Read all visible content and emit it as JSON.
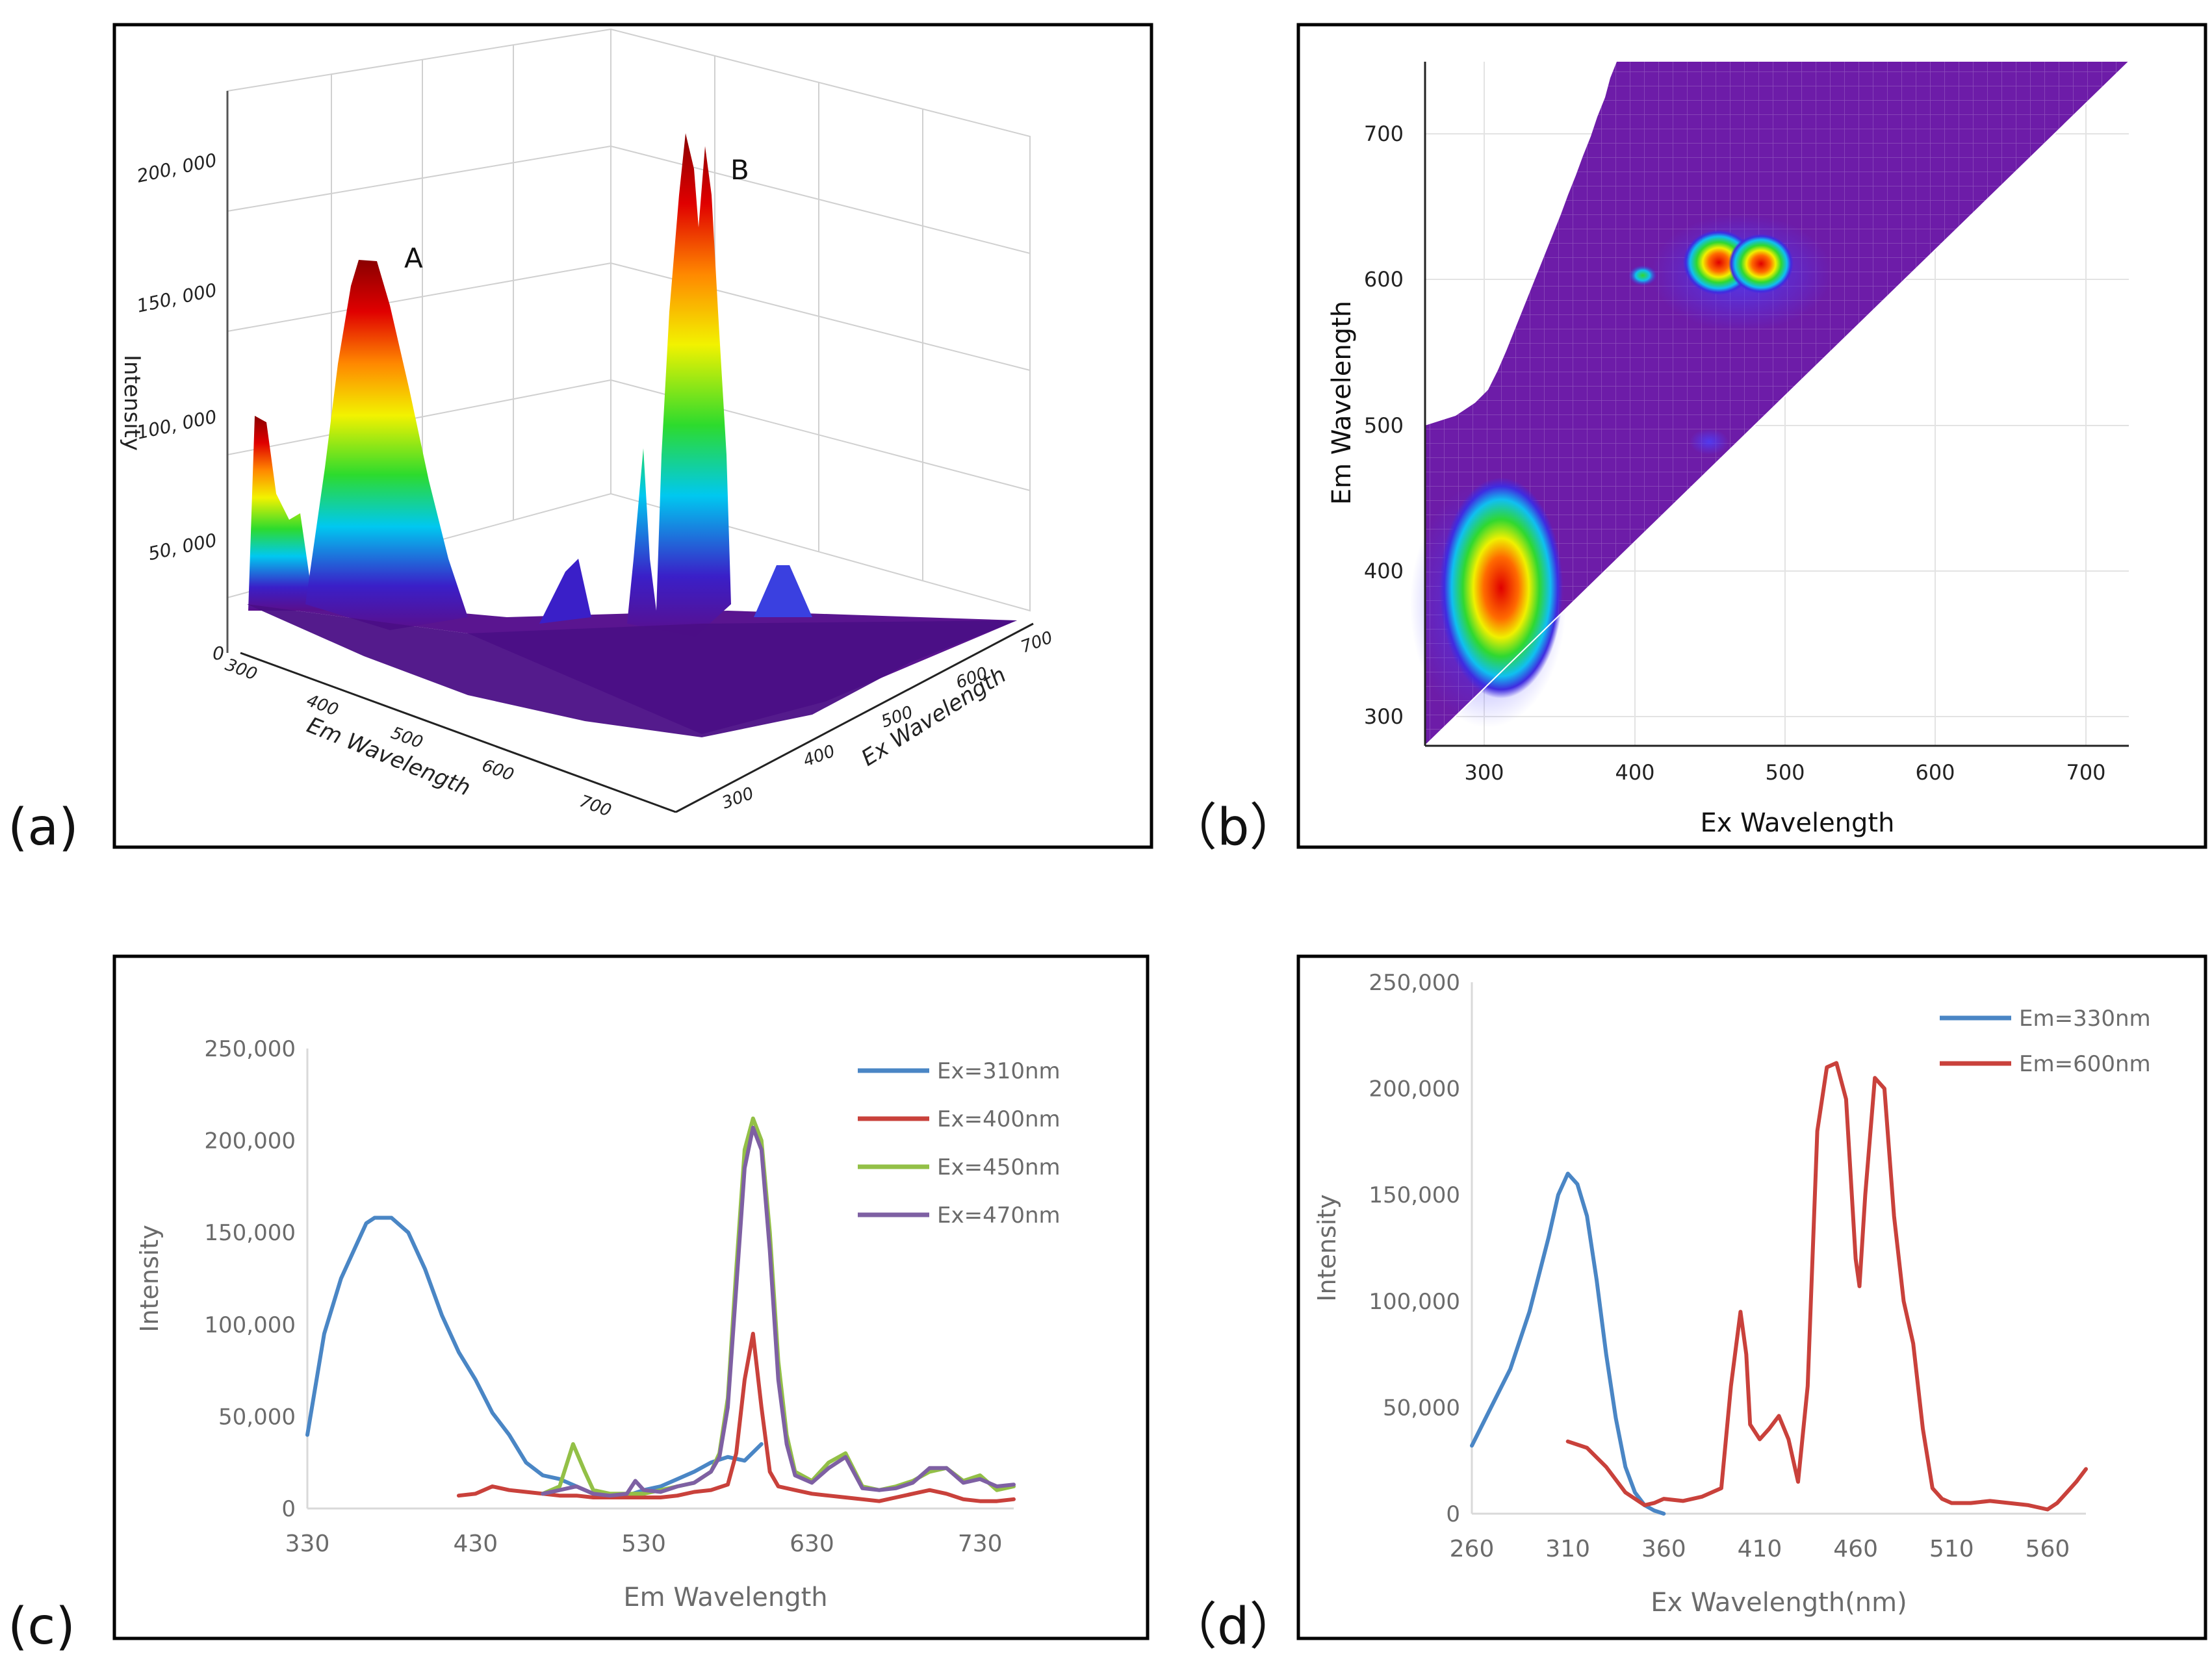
{
  "panels": {
    "a": {
      "label": "(a)"
    },
    "b": {
      "label": "（b）"
    },
    "c": {
      "label": "(c)"
    },
    "d": {
      "label": "（d）"
    }
  },
  "chart_data": [
    {
      "id": "a",
      "type": "surface3d",
      "zlabel": "Intensity",
      "xlabel": "Em Wavelength",
      "ylabel": "Ex Wavelength",
      "zticks": [
        "0",
        "50, 000",
        "100, 000",
        "150, 000",
        "200, 000"
      ],
      "xticks": [
        "300",
        "400",
        "500",
        "600",
        "700"
      ],
      "yticks": [
        "300",
        "400",
        "500",
        "600",
        "700"
      ],
      "annotations": [
        "A",
        "B"
      ],
      "peaks": [
        {
          "label": "A",
          "value": 157000
        },
        {
          "label": "B",
          "value": 208000
        }
      ],
      "colormap": [
        "#5a0f8c",
        "#1f2fd6",
        "#00c8f0",
        "#2ddb2d",
        "#f2f200",
        "#ff8800",
        "#e00000",
        "#8a0000"
      ]
    },
    {
      "id": "b",
      "type": "heatmap",
      "xlabel": "Ex Wavelength",
      "ylabel": "Em Wavelength",
      "xlim": [
        260,
        730
      ],
      "ylim": [
        280,
        750
      ],
      "xticks": [
        "300",
        "400",
        "500",
        "600",
        "700"
      ],
      "yticks": [
        "300",
        "400",
        "500",
        "600",
        "700"
      ],
      "hotspots": [
        {
          "ex": 315,
          "em": 380,
          "level": "max"
        },
        {
          "ex": 460,
          "em": 610,
          "level": "max"
        },
        {
          "ex": 482,
          "em": 610,
          "level": "max"
        },
        {
          "ex": 404,
          "em": 602,
          "level": "mid"
        }
      ],
      "colormap": [
        "#7a1fa8",
        "#3f2be0",
        "#10c0f0",
        "#30d830",
        "#f0f000",
        "#ff6a00",
        "#e00000"
      ]
    },
    {
      "id": "c",
      "type": "line",
      "xlabel": "Em Wavelength",
      "ylabel": "Intensity",
      "xlim": [
        330,
        750
      ],
      "ylim": [
        0,
        250000
      ],
      "xticks": [
        "330",
        "430",
        "530",
        "630",
        "730"
      ],
      "yticks": [
        "0",
        "50,000",
        "100,000",
        "150,000",
        "200,000",
        "250,000"
      ],
      "series": [
        {
          "name": "Ex=310nm",
          "color": "#4a86c5",
          "x": [
            330,
            340,
            350,
            360,
            365,
            370,
            380,
            390,
            400,
            410,
            420,
            430,
            440,
            450,
            460,
            470,
            480,
            490,
            500,
            510,
            520,
            530,
            540,
            550,
            560,
            570,
            580,
            590,
            600
          ],
          "y": [
            40000,
            95000,
            125000,
            145000,
            155000,
            158000,
            158000,
            150000,
            130000,
            105000,
            85000,
            70000,
            52000,
            40000,
            25000,
            18000,
            16000,
            12000,
            8000,
            6000,
            7000,
            10000,
            12000,
            16000,
            20000,
            25000,
            28000,
            26000,
            35000
          ]
        },
        {
          "name": "Ex=400nm",
          "color": "#c9413b",
          "x": [
            420,
            430,
            440,
            450,
            460,
            470,
            480,
            490,
            500,
            510,
            520,
            530,
            540,
            550,
            560,
            570,
            580,
            585,
            590,
            595,
            600,
            605,
            610,
            620,
            630,
            640,
            650,
            660,
            670,
            680,
            690,
            700,
            710,
            720,
            730,
            740,
            750
          ],
          "y": [
            7000,
            8000,
            12000,
            10000,
            9000,
            8000,
            7000,
            7000,
            6000,
            6000,
            6000,
            6000,
            6000,
            7000,
            9000,
            10000,
            13000,
            30000,
            70000,
            95000,
            55000,
            20000,
            12000,
            10000,
            8000,
            7000,
            6000,
            5000,
            4000,
            6000,
            8000,
            10000,
            8000,
            5000,
            4000,
            4000,
            5000
          ]
        },
        {
          "name": "Ex=450nm",
          "color": "#93c047",
          "x": [
            470,
            480,
            488,
            495,
            500,
            510,
            520,
            530,
            540,
            550,
            560,
            570,
            575,
            580,
            585,
            590,
            595,
            600,
            605,
            610,
            615,
            620,
            630,
            640,
            650,
            660,
            670,
            680,
            690,
            700,
            710,
            720,
            730,
            740,
            750
          ],
          "y": [
            8000,
            12000,
            35000,
            20000,
            10000,
            8000,
            8000,
            8000,
            10000,
            12000,
            14000,
            20000,
            30000,
            60000,
            130000,
            195000,
            212000,
            200000,
            150000,
            80000,
            40000,
            20000,
            15000,
            25000,
            30000,
            12000,
            10000,
            12000,
            15000,
            20000,
            22000,
            15000,
            18000,
            10000,
            12000
          ]
        },
        {
          "name": "Ex=470nm",
          "color": "#7e60a3",
          "x": [
            470,
            480,
            490,
            500,
            510,
            520,
            525,
            530,
            540,
            550,
            560,
            570,
            575,
            580,
            585,
            590,
            595,
            600,
            605,
            610,
            615,
            620,
            630,
            640,
            650,
            660,
            670,
            680,
            690,
            700,
            710,
            720,
            730,
            740,
            750
          ],
          "y": [
            8000,
            10000,
            12000,
            8000,
            7000,
            8000,
            15000,
            10000,
            9000,
            12000,
            14000,
            20000,
            28000,
            55000,
            120000,
            185000,
            207000,
            195000,
            140000,
            70000,
            35000,
            18000,
            14000,
            22000,
            28000,
            11000,
            10000,
            11000,
            14000,
            22000,
            22000,
            14000,
            16000,
            12000,
            13000
          ]
        }
      ],
      "legend": "top-right"
    },
    {
      "id": "d",
      "type": "line",
      "xlabel": "Ex Wavelength(nm)",
      "ylabel": "Intensity",
      "xlim": [
        260,
        580
      ],
      "ylim": [
        0,
        250000
      ],
      "xticks": [
        "260",
        "310",
        "360",
        "410",
        "460",
        "510",
        "560"
      ],
      "yticks": [
        "0",
        "50,000",
        "100,000",
        "150,000",
        "200,000",
        "250,000"
      ],
      "series": [
        {
          "name": "Em=330nm",
          "color": "#4a86c5",
          "x": [
            260,
            270,
            280,
            290,
            300,
            305,
            310,
            315,
            320,
            325,
            330,
            335,
            340,
            345,
            350,
            355,
            360
          ],
          "y": [
            32000,
            50000,
            68000,
            95000,
            130000,
            150000,
            160000,
            155000,
            140000,
            110000,
            75000,
            45000,
            22000,
            10000,
            4000,
            1500,
            0
          ]
        },
        {
          "name": "Em=600nm",
          "color": "#c9413b",
          "x": [
            310,
            320,
            330,
            340,
            350,
            355,
            360,
            370,
            380,
            390,
            395,
            400,
            403,
            405,
            410,
            415,
            420,
            425,
            430,
            435,
            440,
            445,
            450,
            455,
            460,
            462,
            465,
            470,
            475,
            480,
            485,
            490,
            495,
            500,
            505,
            510,
            520,
            530,
            540,
            550,
            560,
            565,
            570,
            575,
            580
          ],
          "y": [
            34000,
            31000,
            22000,
            10000,
            4000,
            5000,
            7000,
            6000,
            8000,
            12000,
            60000,
            95000,
            75000,
            42000,
            35000,
            40000,
            46000,
            35000,
            15000,
            60000,
            180000,
            210000,
            212000,
            195000,
            120000,
            107000,
            150000,
            205000,
            200000,
            140000,
            100000,
            80000,
            40000,
            12000,
            7000,
            5000,
            5000,
            6000,
            5000,
            4000,
            2000,
            5000,
            10000,
            15000,
            21000
          ]
        }
      ],
      "legend": "top-right"
    }
  ]
}
